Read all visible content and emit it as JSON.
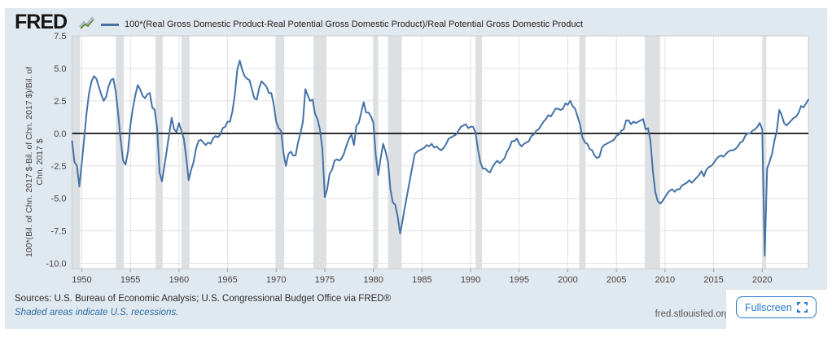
{
  "header": {
    "logo_text": "FRED",
    "legend_label": "100*(Real Gross Domestic Product-Real Potential Gross Domestic Product)/Real Potential Gross Domestic Product"
  },
  "footer": {
    "sources": "Sources: U.S. Bureau of Economic Analysis; U.S. Congressional Budget Office via FRED®",
    "note": "Shaded areas indicate U.S. recessions.",
    "site": "fred.stlouisfed.org",
    "fullscreen_label": "Fullscreen"
  },
  "chart_data": {
    "type": "line",
    "title": "100*(Real Gross Domestic Product-Real Potential Gross Domestic Product)/Real Potential Gross Domestic Product",
    "xlabel": "",
    "ylabel_line1": "100*(Bil. of Chn. 2017 $-Bil. of Chn. 2017 $)/Bil. of",
    "ylabel_line2": "Chn. 2017 $",
    "x_ticks": [
      1950,
      1955,
      1960,
      1965,
      1970,
      1975,
      1980,
      1985,
      1990,
      1995,
      2000,
      2005,
      2010,
      2015,
      2020
    ],
    "y_ticks": [
      7.5,
      5.0,
      2.5,
      0.0,
      -2.5,
      -5.0,
      -7.5,
      -10.0
    ],
    "ylim": [
      -10.4,
      7.5
    ],
    "x_range": [
      1949.0,
      2024.75
    ],
    "grid": true,
    "legend_position": "top",
    "line_color": "#4572a7",
    "colors": {
      "card_bg": "#e1e9f0",
      "plot_bg": "#ffffff",
      "recession": "#dde0e3",
      "grid": "#e0e0e0",
      "border": "#cccccc",
      "zero_line": "#000000",
      "tick_text": "#444444",
      "tick_mark": "#999999"
    },
    "start_year": 1949,
    "frequency": "quarterly",
    "values": [
      -0.6,
      -2.2,
      -2.5,
      -4.1,
      -2.3,
      -0.4,
      1.6,
      3.1,
      4.0,
      4.4,
      4.2,
      3.6,
      3.0,
      2.5,
      2.8,
      3.6,
      4.1,
      4.2,
      3.2,
      1.5,
      -0.5,
      -2.1,
      -2.4,
      -1.4,
      0.6,
      1.9,
      2.9,
      3.7,
      3.4,
      2.9,
      2.7,
      3.0,
      3.1,
      2.0,
      1.8,
      0.4,
      -3.0,
      -3.7,
      -2.5,
      -1.3,
      0.0,
      1.2,
      0.3,
      0.1,
      0.8,
      0.2,
      -0.4,
      -1.9,
      -3.6,
      -2.8,
      -2.2,
      -1.2,
      -0.6,
      -0.5,
      -0.7,
      -0.9,
      -0.7,
      -0.8,
      -0.4,
      -0.2,
      -0.3,
      -0.1,
      0.4,
      0.5,
      0.9,
      0.9,
      1.7,
      3.0,
      4.9,
      5.6,
      4.9,
      4.4,
      4.2,
      4.1,
      3.4,
      2.7,
      2.6,
      3.5,
      4.0,
      3.8,
      3.6,
      3.1,
      3.1,
      2.2,
      0.9,
      0.4,
      0.2,
      -1.5,
      -2.5,
      -1.6,
      -1.4,
      -1.7,
      -1.7,
      -0.7,
      0.0,
      0.9,
      3.4,
      2.9,
      2.5,
      2.6,
      1.5,
      1.1,
      0.3,
      -1.2,
      -4.9,
      -4.3,
      -3.1,
      -2.8,
      -2.1,
      -2.0,
      -2.1,
      -1.9,
      -1.5,
      -0.9,
      -0.4,
      -0.1,
      -0.9,
      0.6,
      0.8,
      1.6,
      2.4,
      1.6,
      1.6,
      1.3,
      0.8,
      -1.7,
      -3.2,
      -1.9,
      -0.8,
      -1.4,
      -2.2,
      -4.3,
      -5.3,
      -5.5,
      -6.4,
      -7.7,
      -6.7,
      -5.6,
      -4.6,
      -3.6,
      -2.6,
      -1.6,
      -1.4,
      -1.3,
      -1.2,
      -1.1,
      -0.9,
      -1.0,
      -0.8,
      -1.1,
      -1.0,
      -1.2,
      -1.3,
      -1.1,
      -0.8,
      -0.4,
      -0.3,
      -0.2,
      -0.1,
      0.2,
      0.5,
      0.6,
      0.7,
      0.4,
      0.5,
      0.5,
      0.1,
      -1.2,
      -2.2,
      -2.7,
      -2.7,
      -2.9,
      -3.0,
      -2.6,
      -2.3,
      -2.1,
      -2.3,
      -2.1,
      -1.9,
      -1.4,
      -1.1,
      -0.6,
      -0.6,
      -0.4,
      -0.8,
      -1.0,
      -0.8,
      -0.7,
      -0.6,
      -0.2,
      -0.1,
      0.2,
      0.3,
      0.6,
      0.9,
      1.1,
      1.4,
      1.3,
      1.6,
      1.9,
      1.9,
      1.8,
      1.9,
      2.3,
      2.2,
      2.5,
      2.1,
      1.9,
      1.3,
      0.7,
      -0.3,
      -0.7,
      -0.8,
      -1.2,
      -1.3,
      -1.7,
      -1.9,
      -1.8,
      -1.1,
      -0.9,
      -0.8,
      -0.7,
      -0.6,
      -0.5,
      -0.2,
      -0.1,
      0.2,
      0.3,
      1.0,
      1.0,
      0.7,
      0.9,
      0.8,
      0.9,
      1.0,
      1.1,
      0.3,
      0.4,
      -0.6,
      -2.9,
      -4.5,
      -5.2,
      -5.4,
      -5.2,
      -4.9,
      -4.6,
      -4.4,
      -4.3,
      -4.5,
      -4.3,
      -4.3,
      -4.0,
      -3.9,
      -3.8,
      -3.6,
      -3.8,
      -3.6,
      -3.4,
      -3.2,
      -2.9,
      -3.3,
      -2.8,
      -2.6,
      -2.5,
      -2.3,
      -2.0,
      -1.8,
      -1.7,
      -1.8,
      -1.6,
      -1.4,
      -1.3,
      -1.3,
      -1.2,
      -1.0,
      -0.7,
      -0.6,
      -0.2,
      0.0,
      0.0,
      0.2,
      0.3,
      0.5,
      0.8,
      0.3,
      -9.4,
      -2.7,
      -2.2,
      -1.6,
      -0.6,
      0.2,
      1.8,
      1.4,
      0.8,
      0.6,
      0.8,
      1.0,
      1.2,
      1.3,
      1.6,
      2.1,
      2.0,
      2.3,
      2.6
    ],
    "recessions": [
      [
        1948.83,
        1949.83
      ],
      [
        1953.5,
        1954.33
      ],
      [
        1957.58,
        1958.33
      ],
      [
        1960.25,
        1961.08
      ],
      [
        1969.92,
        1970.83
      ],
      [
        1973.83,
        1975.17
      ],
      [
        1980.0,
        1980.5
      ],
      [
        1981.5,
        1982.92
      ],
      [
        1990.5,
        1991.17
      ],
      [
        2001.17,
        2001.83
      ],
      [
        2007.92,
        2009.5
      ],
      [
        2020.08,
        2020.42
      ]
    ]
  }
}
